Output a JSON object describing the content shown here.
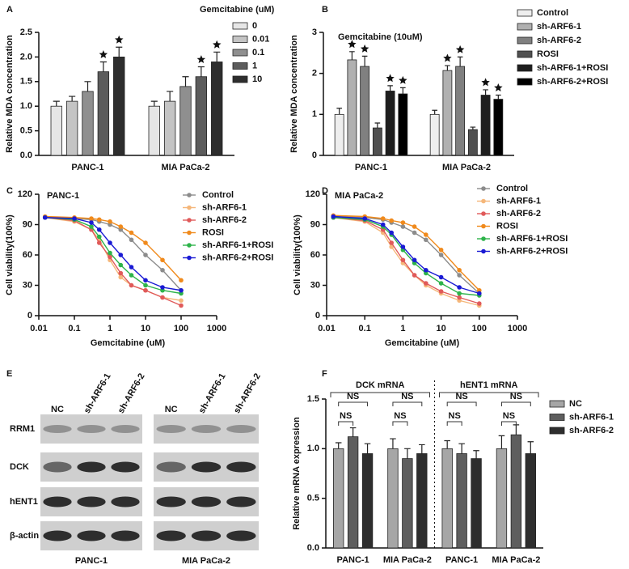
{
  "chart_data": [
    {
      "type": "bar",
      "panel": "A",
      "legend_title": "Gemcitabine (uM)",
      "y_label": "Relative MDA concentration",
      "categories": [
        "PANC-1",
        "MIA PaCa-2"
      ],
      "series": [
        {
          "name": "0",
          "color": "#e6e6e6",
          "values": [
            1.0,
            1.0
          ],
          "errors": [
            0.1,
            0.1
          ],
          "star": false
        },
        {
          "name": "0.01",
          "color": "#c4c4c4",
          "values": [
            1.1,
            1.1
          ],
          "errors": [
            0.1,
            0.2
          ],
          "star": false
        },
        {
          "name": "0.1",
          "color": "#8f8f8f",
          "values": [
            1.3,
            1.4
          ],
          "errors": [
            0.2,
            0.2
          ],
          "star": false
        },
        {
          "name": "1",
          "color": "#5c5c5c",
          "values": [
            1.7,
            1.6
          ],
          "errors": [
            0.2,
            0.2
          ],
          "star": true
        },
        {
          "name": "10",
          "color": "#2e2e2e",
          "values": [
            2.0,
            1.9
          ],
          "errors": [
            0.2,
            0.2
          ],
          "star": true
        }
      ],
      "ylim": [
        0,
        2.5
      ],
      "yticks": [
        {
          "value": 0,
          "label": "0.0"
        },
        0.5,
        {
          "value": 1,
          "label": "1.0"
        },
        1.5,
        {
          "value": 2,
          "label": "2.0"
        },
        2.5
      ]
    },
    {
      "type": "bar",
      "panel": "B",
      "subtitle": "Gemcitabine (10uM)",
      "y_label": "Relative MDA concentration",
      "categories": [
        "PANC-1",
        "MIA PaCa-2"
      ],
      "series": [
        {
          "name": "Control",
          "color": "#eeeeee",
          "values": [
            1.0,
            1.0
          ],
          "errors": [
            0.15,
            0.1
          ],
          "star": false
        },
        {
          "name": "sh-ARF6-1",
          "color": "#b0b0b0",
          "values": [
            2.33,
            2.07
          ],
          "errors": [
            0.2,
            0.12
          ],
          "star": true
        },
        {
          "name": "sh-ARF6-2",
          "color": "#808080",
          "values": [
            2.17,
            2.17
          ],
          "errors": [
            0.25,
            0.23
          ],
          "star": true
        },
        {
          "name": "ROSI",
          "color": "#505050",
          "values": [
            0.67,
            0.63
          ],
          "errors": [
            0.12,
            0.06
          ],
          "star": false
        },
        {
          "name": "sh-ARF6-1+ROSI",
          "color": "#1e1e1e",
          "values": [
            1.57,
            1.47
          ],
          "errors": [
            0.13,
            0.13
          ],
          "star": true
        },
        {
          "name": "sh-ARF6-2+ROSI",
          "color": "#000000",
          "values": [
            1.5,
            1.37
          ],
          "errors": [
            0.15,
            0.1
          ],
          "star": true
        }
      ],
      "ylim": [
        0,
        3
      ],
      "yticks": [
        0,
        1,
        2,
        3
      ]
    },
    {
      "type": "line",
      "panel": "C",
      "annotation": "PANC-1",
      "x_label": "Gemcitabine (uM)",
      "y_label": "Cell viability(100%)",
      "log_x": true,
      "x": [
        0.015,
        0.1,
        0.3,
        0.5,
        1,
        2,
        4,
        10,
        30,
        100
      ],
      "series": [
        {
          "name": "Control",
          "color": "#8c8c8c",
          "values": [
            97,
            96,
            95,
            93,
            90,
            85,
            75,
            60,
            45,
            25
          ]
        },
        {
          "name": "sh-ARF6-1",
          "color": "#f5b77a",
          "values": [
            97,
            93,
            85,
            75,
            55,
            38,
            30,
            25,
            18,
            15
          ]
        },
        {
          "name": "sh-ARF6-2",
          "color": "#e05a5a",
          "values": [
            97,
            94,
            85,
            72,
            58,
            42,
            30,
            25,
            18,
            10
          ]
        },
        {
          "name": "ROSI",
          "color": "#f08a1c",
          "values": [
            98,
            97,
            96,
            95,
            93,
            88,
            82,
            72,
            55,
            35
          ]
        },
        {
          "name": "sh-ARF6-1+ROSI",
          "color": "#2db34a",
          "values": [
            97,
            95,
            88,
            78,
            62,
            50,
            40,
            30,
            25,
            22
          ]
        },
        {
          "name": "sh-ARF6-2+ROSI",
          "color": "#1a1ad4",
          "values": [
            97,
            96,
            92,
            85,
            72,
            60,
            48,
            35,
            28,
            25
          ]
        }
      ],
      "xlim": [
        0.01,
        1000
      ],
      "xticks": [
        0.01,
        0.1,
        1,
        10,
        100,
        1000
      ],
      "ylim": [
        0,
        120
      ],
      "yticks": [
        0,
        30,
        60,
        90,
        120
      ]
    },
    {
      "type": "line",
      "panel": "D",
      "annotation": "MIA PaCa-2",
      "x_label": "Gemcitabine (uM)",
      "y_label": "Cell viability(100%)",
      "log_x": true,
      "x": [
        0.015,
        0.1,
        0.3,
        0.5,
        1,
        2,
        4,
        10,
        30,
        100
      ],
      "series": [
        {
          "name": "Control",
          "color": "#8c8c8c",
          "values": [
            98,
            97,
            95,
            92,
            88,
            82,
            75,
            60,
            40,
            22
          ]
        },
        {
          "name": "sh-ARF6-1",
          "color": "#f5b77a",
          "values": [
            97,
            93,
            82,
            68,
            52,
            40,
            30,
            22,
            15,
            10
          ]
        },
        {
          "name": "sh-ARF6-2",
          "color": "#e05a5a",
          "values": [
            97,
            94,
            85,
            72,
            55,
            40,
            32,
            24,
            18,
            12
          ]
        },
        {
          "name": "ROSI",
          "color": "#f08a1c",
          "values": [
            99,
            98,
            96,
            94,
            92,
            88,
            80,
            65,
            45,
            25
          ]
        },
        {
          "name": "sh-ARF6-1+ROSI",
          "color": "#2db34a",
          "values": [
            97,
            95,
            88,
            80,
            65,
            52,
            42,
            32,
            22,
            20
          ]
        },
        {
          "name": "sh-ARF6-2+ROSI",
          "color": "#1a1ad4",
          "values": [
            98,
            96,
            90,
            82,
            68,
            55,
            45,
            38,
            28,
            22
          ]
        }
      ],
      "xlim": [
        0.01,
        1000
      ],
      "xticks": [
        0.01,
        0.1,
        1,
        10,
        100,
        1000
      ],
      "ylim": [
        0,
        120
      ],
      "yticks": [
        0,
        30,
        60,
        90,
        120
      ]
    },
    {
      "type": "blot",
      "panel": "E",
      "rows": [
        "RRM1",
        "DCK",
        "hENT1",
        "β-actin"
      ],
      "lanes": [
        "NC",
        "sh-ARF6-1",
        "sh-ARF6-2"
      ],
      "groups": [
        "PANC-1",
        "MIA PaCa-2"
      ]
    },
    {
      "type": "bar",
      "panel": "F",
      "y_label": "Relative mRNA expression",
      "group_labels": [
        "DCK mRNA",
        "hENT1 mRNA"
      ],
      "bracket_label": "NS",
      "categories": [
        "PANC-1",
        "MIA PaCa-2",
        "PANC-1",
        "MIA PaCa-2"
      ],
      "series": [
        {
          "name": "NC",
          "color": "#a6a6a6",
          "values": [
            1.0,
            1.0,
            1.0,
            1.0
          ],
          "errors": [
            0.06,
            0.1,
            0.08,
            0.13
          ]
        },
        {
          "name": "sh-ARF6-1",
          "color": "#5e5e5e",
          "values": [
            1.12,
            0.9,
            0.95,
            1.14
          ],
          "errors": [
            0.09,
            0.1,
            0.1,
            0.1
          ]
        },
        {
          "name": "sh-ARF6-2",
          "color": "#2e2e2e",
          "values": [
            0.95,
            0.95,
            0.9,
            0.95
          ],
          "errors": [
            0.1,
            0.09,
            0.08,
            0.12
          ]
        }
      ],
      "ylim": [
        0,
        1.5
      ],
      "yticks": [
        {
          "value": 0,
          "label": "0.0"
        },
        0.5,
        {
          "value": 1,
          "label": "1.0"
        },
        1.5
      ]
    }
  ]
}
